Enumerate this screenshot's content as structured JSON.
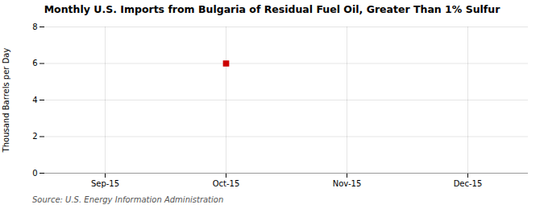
{
  "chart_data": {
    "type": "scatter",
    "title": "Monthly U.S. Imports from Bulgaria of Residual Fuel Oil, Greater Than 1% Sulfur",
    "ylabel": "Thousand Barrels per Day",
    "source": "Source: U.S. Energy Information Administration",
    "categories": [
      "Sep-15",
      "Oct-15",
      "Nov-15",
      "Dec-15"
    ],
    "values": [
      null,
      6,
      null,
      null
    ],
    "color": "#cc0000",
    "marker": "square",
    "ylim": [
      0,
      8
    ],
    "yticks": [
      0,
      2,
      4,
      6,
      8
    ],
    "grid": true
  }
}
